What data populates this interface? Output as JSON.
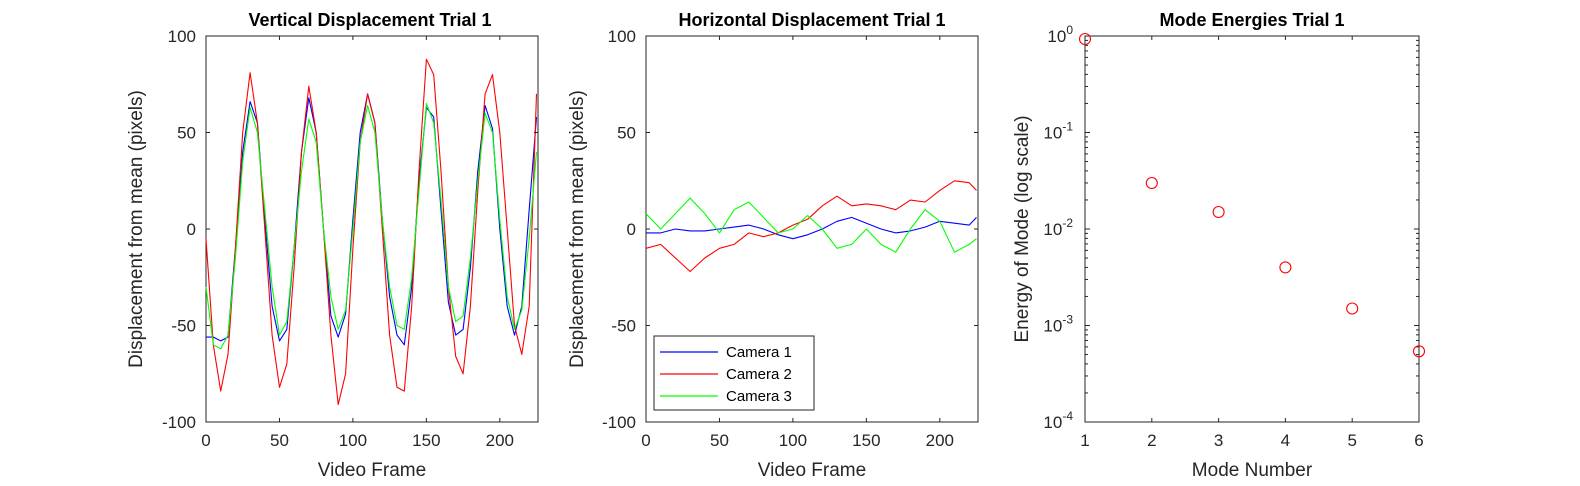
{
  "chart_data": [
    {
      "type": "line",
      "title": "Vertical Displacement Trial 1",
      "xlabel": "Video Frame",
      "ylabel": "Displacement from mean (pixels)",
      "xlim": [
        0,
        226
      ],
      "ylim": [
        -100,
        100
      ],
      "xticks": [
        0,
        50,
        100,
        150,
        200
      ],
      "yticks": [
        -100,
        -50,
        0,
        50,
        100
      ],
      "series": [
        {
          "name": "Camera 1",
          "color": "#0000ff",
          "x": [
            0,
            5,
            10,
            15,
            20,
            25,
            30,
            35,
            40,
            45,
            50,
            55,
            60,
            65,
            70,
            75,
            80,
            85,
            90,
            95,
            100,
            105,
            110,
            115,
            120,
            125,
            130,
            135,
            140,
            145,
            150,
            155,
            160,
            165,
            170,
            175,
            180,
            185,
            190,
            195,
            200,
            205,
            210,
            215,
            220,
            225
          ],
          "y": [
            -56,
            -56,
            -58,
            -56,
            -10,
            40,
            66,
            55,
            5,
            -40,
            -58,
            -52,
            -10,
            40,
            68,
            50,
            0,
            -45,
            -56,
            -44,
            5,
            50,
            70,
            55,
            5,
            -35,
            -55,
            -60,
            -30,
            25,
            63,
            58,
            10,
            -38,
            -55,
            -52,
            -20,
            30,
            64,
            52,
            0,
            -40,
            -55,
            -40,
            10,
            58
          ]
        },
        {
          "name": "Camera 2",
          "color": "#ff0000",
          "x": [
            0,
            5,
            10,
            15,
            20,
            25,
            30,
            35,
            40,
            45,
            50,
            55,
            60,
            65,
            70,
            75,
            80,
            85,
            90,
            95,
            100,
            105,
            110,
            115,
            120,
            125,
            130,
            135,
            140,
            145,
            150,
            155,
            160,
            165,
            170,
            175,
            180,
            185,
            190,
            195,
            200,
            205,
            210,
            215,
            220,
            225
          ],
          "y": [
            -5,
            -60,
            -84,
            -65,
            -10,
            50,
            81,
            55,
            0,
            -55,
            -82,
            -70,
            -20,
            40,
            74,
            50,
            0,
            -55,
            -91,
            -75,
            -10,
            45,
            70,
            55,
            0,
            -55,
            -82,
            -84,
            -40,
            30,
            88,
            80,
            30,
            -30,
            -66,
            -75,
            -40,
            20,
            70,
            80,
            50,
            0,
            -50,
            -65,
            -40,
            70
          ]
        },
        {
          "name": "Camera 3",
          "color": "#00ff00",
          "x": [
            0,
            5,
            10,
            15,
            20,
            25,
            30,
            35,
            40,
            45,
            50,
            55,
            60,
            65,
            70,
            75,
            80,
            85,
            90,
            95,
            100,
            105,
            110,
            115,
            120,
            125,
            130,
            135,
            140,
            145,
            150,
            155,
            160,
            165,
            170,
            175,
            180,
            185,
            190,
            195,
            200,
            205,
            210,
            215,
            220,
            225
          ],
          "y": [
            -30,
            -60,
            -62,
            -55,
            -15,
            35,
            63,
            50,
            10,
            -30,
            -55,
            -48,
            -10,
            30,
            57,
            45,
            0,
            -35,
            -52,
            -42,
            0,
            45,
            64,
            50,
            5,
            -30,
            -50,
            -52,
            -25,
            20,
            65,
            55,
            15,
            -30,
            -48,
            -45,
            -15,
            25,
            60,
            50,
            5,
            -35,
            -52,
            -42,
            -5,
            40
          ]
        }
      ]
    },
    {
      "type": "line",
      "title": "Horizontal Displacement Trial 1",
      "xlabel": "Video Frame",
      "ylabel": "Displacement from mean (pixels)",
      "xlim": [
        0,
        226
      ],
      "ylim": [
        -100,
        100
      ],
      "xticks": [
        0,
        50,
        100,
        150,
        200
      ],
      "yticks": [
        -100,
        -50,
        0,
        50,
        100
      ],
      "legend": {
        "position": "bottom-left",
        "entries": [
          "Camera 1",
          "Camera 2",
          "Camera 3"
        ]
      },
      "series": [
        {
          "name": "Camera 1",
          "color": "#0000ff",
          "x": [
            0,
            10,
            20,
            30,
            40,
            50,
            60,
            70,
            80,
            90,
            100,
            110,
            120,
            130,
            140,
            150,
            160,
            170,
            180,
            190,
            200,
            210,
            220,
            225
          ],
          "y": [
            -2,
            -2,
            0,
            -1,
            -1,
            0,
            1,
            2,
            0,
            -3,
            -5,
            -3,
            0,
            4,
            6,
            3,
            0,
            -2,
            -1,
            1,
            4,
            3,
            2,
            6
          ]
        },
        {
          "name": "Camera 2",
          "color": "#ff0000",
          "x": [
            0,
            10,
            20,
            30,
            40,
            50,
            60,
            70,
            80,
            90,
            100,
            110,
            120,
            130,
            140,
            150,
            160,
            170,
            180,
            190,
            200,
            210,
            220,
            225
          ],
          "y": [
            -10,
            -8,
            -15,
            -22,
            -15,
            -10,
            -8,
            -2,
            -4,
            -2,
            2,
            5,
            12,
            17,
            12,
            13,
            12,
            10,
            15,
            14,
            20,
            25,
            24,
            20
          ]
        },
        {
          "name": "Camera 3",
          "color": "#00ff00",
          "x": [
            0,
            10,
            20,
            30,
            40,
            50,
            60,
            70,
            80,
            90,
            100,
            110,
            120,
            130,
            140,
            150,
            160,
            170,
            180,
            190,
            200,
            210,
            220,
            225
          ],
          "y": [
            8,
            0,
            8,
            16,
            8,
            -2,
            10,
            14,
            6,
            -2,
            0,
            7,
            0,
            -10,
            -8,
            0,
            -8,
            -12,
            0,
            10,
            4,
            -12,
            -8,
            -5
          ]
        }
      ]
    },
    {
      "type": "scatter",
      "title": "Mode Energies Trial 1",
      "xlabel": "Mode Number",
      "ylabel": "Energy of Mode (log scale)",
      "xlim": [
        1,
        6
      ],
      "yscale": "log",
      "ylim": [
        0.0001,
        1
      ],
      "xticks": [
        1,
        2,
        3,
        4,
        5,
        6
      ],
      "ytick_labels": [
        {
          "base": "10",
          "exp": "0"
        },
        {
          "base": "10",
          "exp": "-1"
        },
        {
          "base": "10",
          "exp": "-2"
        },
        {
          "base": "10",
          "exp": "-3"
        },
        {
          "base": "10",
          "exp": "-4"
        }
      ],
      "marker": "circle-open",
      "color": "#ff0000",
      "x": [
        1,
        2,
        3,
        4,
        5,
        6
      ],
      "y": [
        0.93,
        0.03,
        0.015,
        0.004,
        0.0015,
        0.00054
      ]
    }
  ]
}
